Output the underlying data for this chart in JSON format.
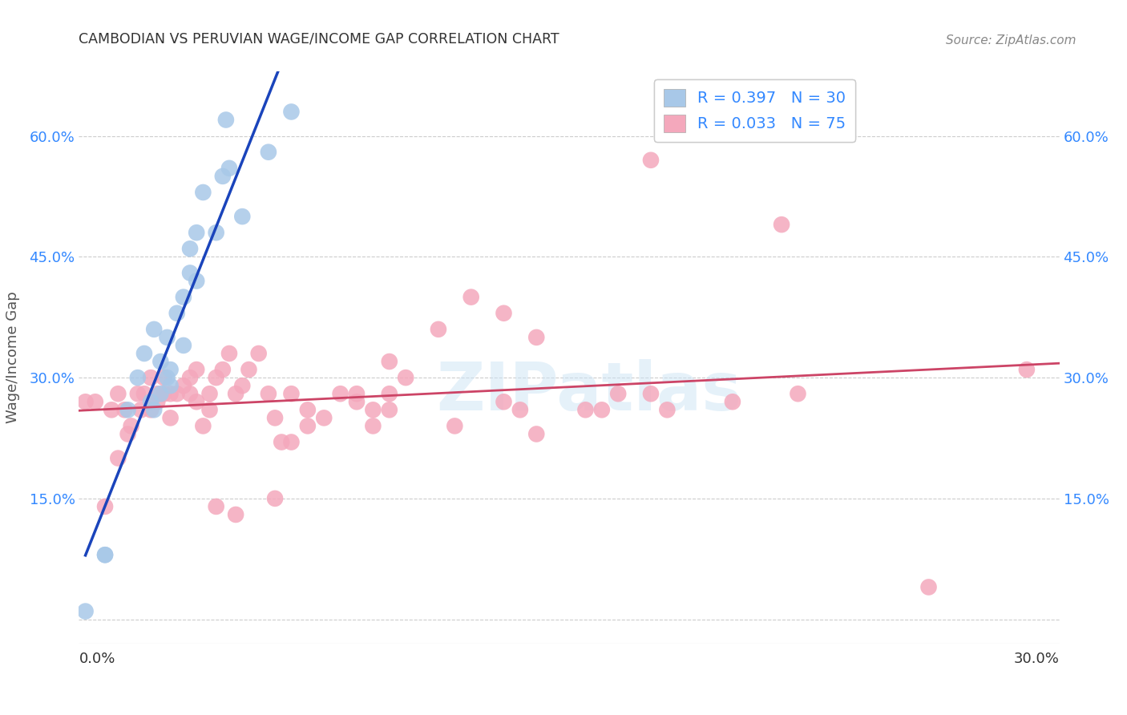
{
  "title": "CAMBODIAN VS PERUVIAN WAGE/INCOME GAP CORRELATION CHART",
  "source": "Source: ZipAtlas.com",
  "ylabel": "Wage/Income Gap",
  "xlim": [
    0.0,
    0.3
  ],
  "ylim": [
    -0.03,
    0.68
  ],
  "yticks": [
    0.0,
    0.15,
    0.3,
    0.45,
    0.6
  ],
  "cambodian_color": "#a8c8e8",
  "peruvian_color": "#f4a8bc",
  "cambodian_line_color": "#1a44bb",
  "peruvian_line_color": "#cc4466",
  "dashed_line_color": "#aaaacc",
  "background_color": "#ffffff",
  "cambodian_x": [
    0.002,
    0.015,
    0.018,
    0.02,
    0.022,
    0.023,
    0.023,
    0.025,
    0.025,
    0.027,
    0.027,
    0.028,
    0.028,
    0.03,
    0.032,
    0.032,
    0.034,
    0.034,
    0.036,
    0.036,
    0.038,
    0.042,
    0.044,
    0.045,
    0.046,
    0.008,
    0.008,
    0.05,
    0.058,
    0.065
  ],
  "cambodian_y": [
    0.01,
    0.26,
    0.3,
    0.33,
    0.27,
    0.26,
    0.36,
    0.28,
    0.32,
    0.3,
    0.35,
    0.29,
    0.31,
    0.38,
    0.34,
    0.4,
    0.43,
    0.46,
    0.48,
    0.42,
    0.53,
    0.48,
    0.55,
    0.62,
    0.56,
    0.08,
    0.08,
    0.5,
    0.58,
    0.63
  ],
  "peruvian_x": [
    0.002,
    0.005,
    0.008,
    0.01,
    0.012,
    0.012,
    0.014,
    0.015,
    0.016,
    0.018,
    0.019,
    0.02,
    0.022,
    0.022,
    0.024,
    0.024,
    0.026,
    0.026,
    0.028,
    0.028,
    0.03,
    0.032,
    0.034,
    0.034,
    0.036,
    0.036,
    0.038,
    0.04,
    0.04,
    0.042,
    0.044,
    0.046,
    0.048,
    0.05,
    0.052,
    0.055,
    0.058,
    0.06,
    0.062,
    0.065,
    0.07,
    0.075,
    0.085,
    0.09,
    0.095,
    0.1,
    0.11,
    0.12,
    0.13,
    0.14,
    0.06,
    0.065,
    0.08,
    0.085,
    0.095,
    0.115,
    0.135,
    0.155,
    0.165,
    0.175,
    0.042,
    0.048,
    0.07,
    0.09,
    0.13,
    0.16,
    0.18,
    0.2,
    0.22,
    0.095,
    0.14,
    0.175,
    0.215,
    0.26,
    0.29
  ],
  "peruvian_y": [
    0.27,
    0.27,
    0.14,
    0.26,
    0.28,
    0.2,
    0.26,
    0.23,
    0.24,
    0.28,
    0.26,
    0.28,
    0.26,
    0.3,
    0.27,
    0.28,
    0.28,
    0.3,
    0.25,
    0.28,
    0.28,
    0.29,
    0.28,
    0.3,
    0.27,
    0.31,
    0.24,
    0.26,
    0.28,
    0.3,
    0.31,
    0.33,
    0.28,
    0.29,
    0.31,
    0.33,
    0.28,
    0.25,
    0.22,
    0.28,
    0.24,
    0.25,
    0.28,
    0.24,
    0.26,
    0.3,
    0.36,
    0.4,
    0.38,
    0.35,
    0.15,
    0.22,
    0.28,
    0.27,
    0.28,
    0.24,
    0.26,
    0.26,
    0.28,
    0.28,
    0.14,
    0.13,
    0.26,
    0.26,
    0.27,
    0.26,
    0.26,
    0.27,
    0.28,
    0.32,
    0.23,
    0.57,
    0.49,
    0.04,
    0.31
  ]
}
